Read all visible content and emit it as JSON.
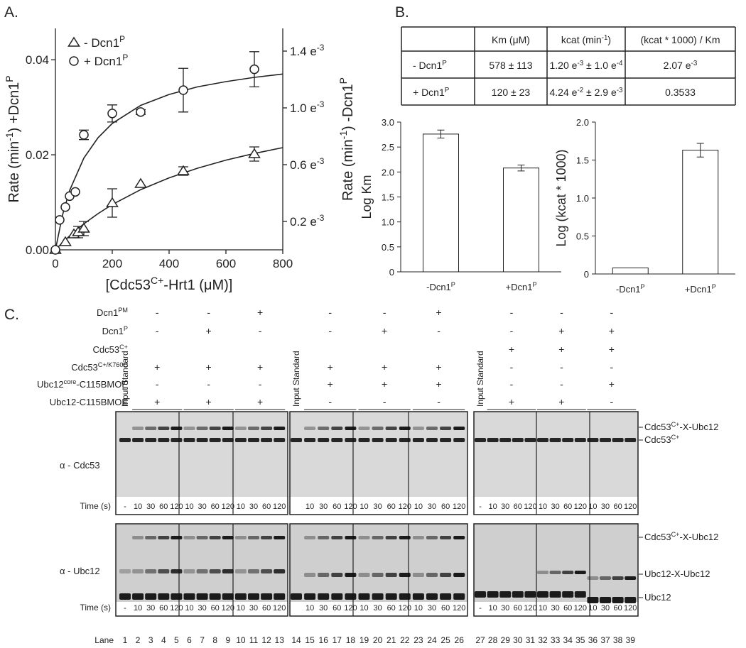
{
  "panel_labels": [
    "A.",
    "B.",
    "C."
  ],
  "chart_data": [
    {
      "type": "scatter",
      "xlabel": [
        "[Cdc53",
        {
          "sup": "C+"
        },
        "-Hrt1 (μM)]"
      ],
      "ylabel": [
        "Rate (min",
        {
          "sup": "-1"
        },
        ") +Dcn1",
        {
          "sup": "P"
        }
      ],
      "y2label": [
        "Rate (min",
        {
          "sup": "-1"
        },
        ") -Dcn1",
        {
          "sup": "P"
        }
      ],
      "xlim": [
        0,
        800
      ],
      "xticks": [
        0,
        200,
        400,
        600,
        800
      ],
      "ylim": [
        0,
        0.0466
      ],
      "yticks": [
        {
          "value": 0,
          "label": "0.00"
        },
        0.02,
        0.04
      ],
      "y2lim": [
        0,
        0.00156
      ],
      "y2ticks": [
        {
          "value": 0.0002,
          "label": [
            "0.2 e",
            {
              "sup": "-3"
            }
          ]
        },
        {
          "value": 0.0006,
          "label": [
            "0.6 e",
            {
              "sup": "-3"
            }
          ]
        },
        {
          "value": 0.001,
          "label": [
            "1.0 e",
            {
              "sup": "-3"
            }
          ]
        },
        {
          "value": 0.0014,
          "label": [
            "1.4 e",
            {
              "sup": "-3"
            }
          ]
        }
      ],
      "legend": "upper left",
      "series": [
        {
          "name": [
            "- Dcn1",
            {
              "sup": "P"
            }
          ],
          "marker": "triangle",
          "color": "#222222",
          "axis": "y2",
          "x": [
            0,
            35,
            65,
            80,
            100,
            200,
            300,
            450,
            700
          ],
          "values": [
            0,
            5.5e-05,
            0.00011,
            0.000125,
            0.00015,
            0.00033,
            0.000465,
            0.000555,
            0.000675
          ],
          "errors": [
            null,
            null,
            null,
            4e-05,
            5e-05,
            0.0001,
            null,
            3e-05,
            5e-05
          ]
        },
        {
          "name": [
            "+ Dcn1",
            {
              "sup": "P"
            }
          ],
          "marker": "circle",
          "color": "#222222",
          "axis": "y",
          "x": [
            0,
            15,
            35,
            50,
            70,
            100,
            200,
            300,
            450,
            700
          ],
          "values": [
            0,
            0.0063,
            0.009,
            0.0113,
            0.0122,
            0.0242,
            0.0287,
            0.029,
            0.0336,
            0.038
          ],
          "errors": [
            null,
            null,
            null,
            null,
            null,
            0.001,
            0.0018,
            0.0005,
            0.0046,
            0.0037
          ]
        }
      ],
      "fits": [
        {
          "axis": "y2",
          "color": "#222222",
          "x": [
            0,
            25,
            50,
            100,
            150,
            200,
            300,
            400,
            500,
            600,
            700,
            800
          ],
          "values": [
            0,
            5.14e-05,
            9.87e-05,
            0.000183,
            0.000255,
            0.000319,
            0.000424,
            0.000507,
            0.000575,
            0.000632,
            0.000679,
            0.00072
          ]
        },
        {
          "axis": "y",
          "color": "#222222",
          "x": [
            0,
            25,
            50,
            100,
            150,
            200,
            300,
            400,
            500,
            600,
            700,
            800
          ],
          "values": [
            0,
            0.00733,
            0.0125,
            0.0193,
            0.0236,
            0.0266,
            0.0304,
            0.0327,
            0.0343,
            0.0354,
            0.0363,
            0.037
          ]
        }
      ]
    },
    {
      "type": "bar",
      "ylabel": "Log Km",
      "categories": [
        [
          "-Dcn1",
          {
            "sup": "P"
          }
        ],
        [
          "+Dcn1",
          {
            "sup": "P"
          }
        ]
      ],
      "values": [
        2.76,
        2.08
      ],
      "errors": [
        0.08,
        0.06
      ],
      "color": "#ffffff",
      "ylim": [
        0,
        3
      ],
      "yticks": [
        0,
        0.5,
        {
          "value": 1,
          "label": "1.0"
        },
        1.5,
        {
          "value": 2,
          "label": "2.0"
        },
        2.5,
        {
          "value": 3,
          "label": "3.0"
        }
      ]
    },
    {
      "type": "bar",
      "ylabel": "Log (kcat * 1000)",
      "categories": [
        [
          "-Dcn1",
          {
            "sup": "P"
          }
        ],
        [
          "+Dcn1",
          {
            "sup": "P"
          }
        ]
      ],
      "values": [
        0.08,
        1.63
      ],
      "errors": [
        null,
        0.09
      ],
      "color": "#ffffff",
      "ylim": [
        0,
        2
      ],
      "yticks": [
        0,
        0.5,
        {
          "value": 1,
          "label": "1.0"
        },
        1.5,
        {
          "value": 2,
          "label": "2.0"
        }
      ]
    }
  ],
  "table": {
    "header": [
      "Km (μM)",
      [
        "kcat (min",
        {
          "sup": "-1"
        },
        ")"
      ],
      "(kcat * 1000) / Km"
    ],
    "rows": [
      [
        [
          "- Dcn1",
          {
            "sup": "P"
          }
        ],
        "578 ± 113",
        [
          "1.20 e",
          {
            "sup": "-3"
          },
          " ± 1.0 e",
          {
            "sup": "-4"
          }
        ],
        [
          "2.07 e",
          {
            "sup": "-3"
          }
        ]
      ],
      [
        [
          "+ Dcn1",
          {
            "sup": "P"
          }
        ],
        "120 ±  23",
        [
          "4.24 e",
          {
            "sup": "-2"
          },
          " ± 2.9 e",
          {
            "sup": "-3"
          }
        ],
        "0.3533"
      ]
    ]
  },
  "blot": {
    "conditions": [
      {
        "label": [
          "Dcn1",
          {
            "sup": "PM"
          }
        ],
        "marks": [
          "-",
          "-",
          "+",
          "-",
          "-",
          "+",
          "-",
          "-",
          "-"
        ]
      },
      {
        "label": [
          "Dcn1",
          {
            "sup": "P"
          }
        ],
        "marks": [
          "-",
          "+",
          "-",
          "-",
          "+",
          "-",
          "-",
          "+",
          "+"
        ]
      },
      {
        "label": [
          "Cdc53",
          {
            "sup": "C+"
          }
        ],
        "marks": [
          null,
          null,
          null,
          null,
          null,
          null,
          "+",
          "+",
          "+"
        ]
      },
      {
        "label": [
          "Cdc53",
          {
            "sup": "C+/K760C"
          }
        ],
        "marks": [
          "+",
          "+",
          "+",
          "+",
          "+",
          "+",
          "-",
          "-",
          "-"
        ]
      },
      {
        "label": [
          "Ubc12",
          {
            "sup": "core"
          },
          "-C115BMOE"
        ],
        "marks": [
          "-",
          "-",
          "-",
          "+",
          "+",
          "+",
          "-",
          "-",
          "+"
        ]
      },
      {
        "label": "Ubc12-C115BMOE",
        "marks": [
          "+",
          "+",
          "+",
          "-",
          "-",
          "-",
          "+",
          "+",
          "-"
        ]
      }
    ],
    "input_standard": "Input Standard",
    "antibodies": [
      "α - Cdc53",
      "α - Ubc12"
    ],
    "time_title": "Time (s)",
    "time_labels": [
      [
        "-",
        "10",
        "30",
        "60",
        "120",
        "10",
        "30",
        "60",
        "120",
        "10",
        "30",
        "60",
        "120"
      ],
      [
        null,
        "10",
        "30",
        "60",
        "120",
        "10",
        "30",
        "60",
        "120",
        "10",
        "30",
        "60",
        "120"
      ],
      [
        "-",
        "10",
        "30",
        "60",
        "120",
        "10",
        "30",
        "60",
        "120",
        "10",
        "30",
        "60",
        "120"
      ]
    ],
    "lane_title": "Lane",
    "lanes": [
      1,
      2,
      3,
      4,
      5,
      6,
      7,
      8,
      9,
      10,
      11,
      12,
      13,
      14,
      15,
      16,
      17,
      18,
      19,
      20,
      21,
      22,
      23,
      24,
      25,
      26,
      27,
      28,
      29,
      30,
      31,
      32,
      33,
      34,
      35,
      36,
      37,
      38,
      39
    ],
    "top_bands": [
      [
        "Cdc53",
        {
          "sup": "C+"
        },
        "-X-Ubc12"
      ],
      [
        "Cdc53",
        {
          "sup": "C+"
        }
      ]
    ],
    "bottom_bands": [
      [
        "Cdc53",
        {
          "sup": "C+"
        },
        "-X-Ubc12"
      ],
      "Ubc12-X-Ubc12",
      "Ubc12"
    ]
  }
}
